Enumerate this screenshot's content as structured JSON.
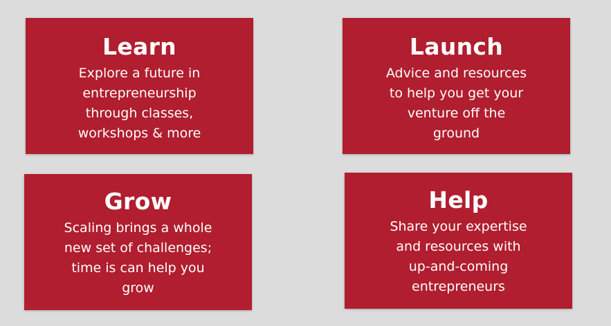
{
  "cards": [
    {
      "title": "Learn",
      "text": "Explore a future in\nentrepreneurship\nthrough classes,\nworkshops & more"
    },
    {
      "title": "Launch",
      "text": "Advice and resources\nto help you get your\nventure off the\nground"
    },
    {
      "title": "Grow",
      "text": "Scaling brings a whole\nnew set of challenges;\ntime is can help you\ngrow"
    },
    {
      "title": "Help",
      "text": "Share your expertise\nand resources with\nup-and-coming\nentrepreneurs"
    }
  ],
  "colors": {
    "background": "#dcdcdc",
    "card": "#b01e2f",
    "text": "#ffffff"
  }
}
